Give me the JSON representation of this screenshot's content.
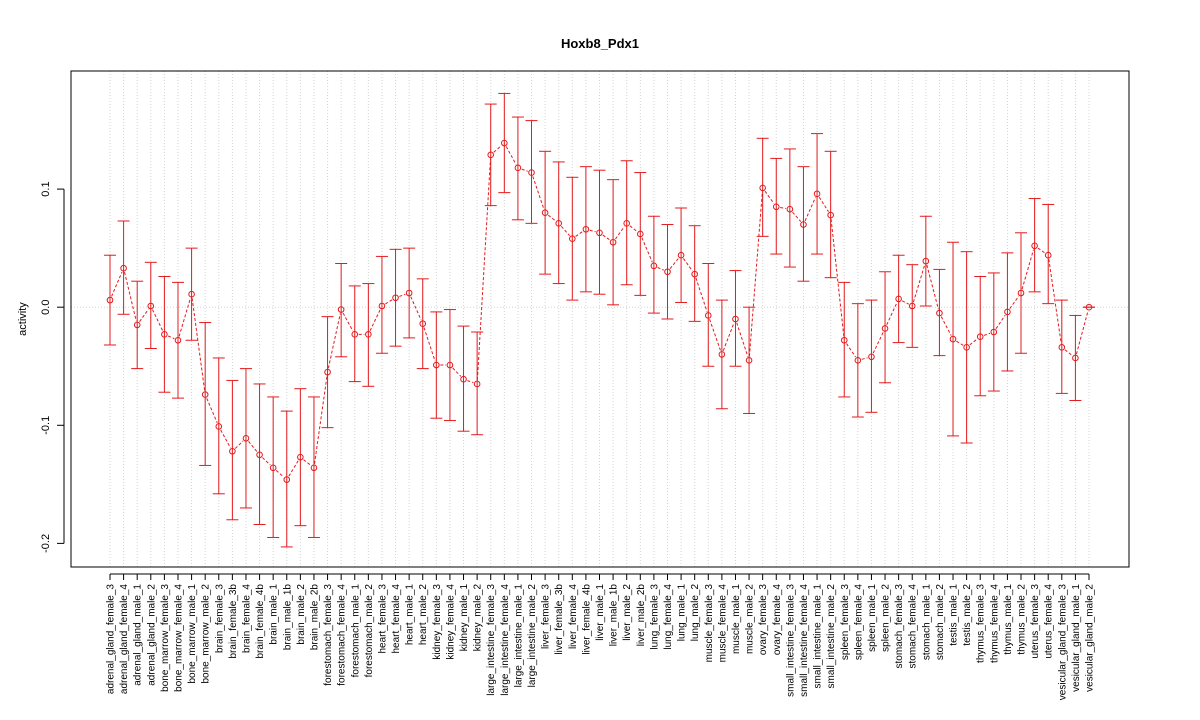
{
  "chart_data": {
    "type": "line",
    "title": "Hoxb8_Pdx1",
    "xlabel": "",
    "ylabel": "activity",
    "ylim": [
      -0.22,
      0.2
    ],
    "y_ticks": [
      -0.2,
      -0.1,
      0.0,
      0.1
    ],
    "y_tick_labels": [
      "-0.2",
      "-0.1",
      "0.0",
      "0.1"
    ],
    "grid": true,
    "color": "#e41a1c",
    "categories": [
      "adrenal_gland_female_3",
      "adrenal_gland_female_4",
      "adrenal_gland_male_1",
      "adrenal_gland_male_2",
      "bone_marrow_female_3",
      "bone_marrow_female_4",
      "bone_marrow_male_1",
      "bone_marrow_male_2",
      "brain_female_3",
      "brain_female_3b",
      "brain_female_4",
      "brain_female_4b",
      "brain_male_1",
      "brain_male_1b",
      "brain_male_2",
      "brain_male_2b",
      "forestomach_female_3",
      "forestomach_female_4",
      "forestomach_male_1",
      "forestomach_male_2",
      "heart_female_3",
      "heart_female_4",
      "heart_male_1",
      "heart_male_2",
      "kidney_female_3",
      "kidney_female_4",
      "kidney_male_1",
      "kidney_male_2",
      "large_intestine_female_3",
      "large_intestine_female_4",
      "large_intestine_male_1",
      "large_intestine_male_2",
      "liver_female_3",
      "liver_female_3b",
      "liver_female_4",
      "liver_female_4b",
      "liver_male_1",
      "liver_male_1b",
      "liver_male_2",
      "liver_male_2b",
      "lung_female_3",
      "lung_female_4",
      "lung_male_1",
      "lung_male_2",
      "muscle_female_3",
      "muscle_female_4",
      "muscle_male_1",
      "muscle_male_2",
      "ovary_female_3",
      "ovary_female_4",
      "small_intestine_female_3",
      "small_intestine_female_4",
      "small_intestine_male_1",
      "small_intestine_male_2",
      "spleen_female_3",
      "spleen_female_4",
      "spleen_male_1",
      "spleen_male_2",
      "stomach_female_3",
      "stomach_female_4",
      "stomach_male_1",
      "stomach_male_2",
      "testis_male_1",
      "testis_male_2",
      "thymus_female_3",
      "thymus_female_4",
      "thymus_male_1",
      "thymus_male_2",
      "uterus_female_3",
      "uterus_female_4",
      "vesicular_gland_female_3",
      "vesicular_gland_male_1",
      "vesicular_gland_male_2"
    ],
    "values": [
      0.006,
      0.033,
      -0.015,
      0.001,
      -0.023,
      -0.028,
      0.011,
      -0.074,
      -0.101,
      -0.122,
      -0.111,
      -0.125,
      -0.136,
      -0.146,
      -0.127,
      -0.136,
      -0.055,
      -0.002,
      -0.023,
      -0.023,
      0.001,
      0.008,
      0.012,
      -0.014,
      -0.049,
      -0.049,
      -0.061,
      -0.065,
      0.129,
      0.139,
      0.118,
      0.114,
      0.08,
      0.071,
      0.058,
      0.066,
      0.063,
      0.055,
      0.071,
      0.062,
      0.035,
      0.03,
      0.044,
      0.028,
      -0.007,
      -0.04,
      -0.01,
      -0.045,
      0.101,
      0.085,
      0.083,
      0.07,
      0.096,
      0.078,
      -0.028,
      -0.045,
      -0.042,
      -0.018,
      0.007,
      0.001,
      0.039,
      -0.005,
      -0.027,
      -0.034,
      -0.025,
      -0.021,
      -0.004,
      0.012,
      0.052,
      0.044,
      -0.034,
      -0.043,
      0.0
    ],
    "lower": [
      -0.032,
      -0.006,
      -0.052,
      -0.035,
      -0.072,
      -0.077,
      -0.028,
      -0.134,
      -0.158,
      -0.18,
      -0.17,
      -0.184,
      -0.195,
      -0.203,
      -0.185,
      -0.195,
      -0.102,
      -0.042,
      -0.063,
      -0.067,
      -0.039,
      -0.033,
      -0.026,
      -0.052,
      -0.094,
      -0.096,
      -0.105,
      -0.108,
      0.086,
      0.097,
      0.074,
      0.071,
      0.028,
      0.02,
      0.006,
      0.013,
      0.011,
      0.002,
      0.019,
      0.01,
      -0.005,
      -0.01,
      0.004,
      -0.012,
      -0.05,
      -0.086,
      -0.05,
      -0.09,
      0.06,
      0.045,
      0.034,
      0.022,
      0.045,
      0.025,
      -0.076,
      -0.093,
      -0.089,
      -0.064,
      -0.03,
      -0.034,
      0.001,
      -0.041,
      -0.109,
      -0.115,
      -0.075,
      -0.071,
      -0.054,
      -0.039,
      0.013,
      0.003,
      -0.073,
      -0.079,
      0.0
    ],
    "upper": [
      0.044,
      0.073,
      0.022,
      0.038,
      0.026,
      0.021,
      0.05,
      -0.013,
      -0.043,
      -0.062,
      -0.052,
      -0.065,
      -0.076,
      -0.088,
      -0.069,
      -0.076,
      -0.008,
      0.037,
      0.018,
      0.02,
      0.043,
      0.049,
      0.05,
      0.024,
      -0.004,
      -0.002,
      -0.016,
      -0.021,
      0.172,
      0.181,
      0.161,
      0.158,
      0.132,
      0.123,
      0.11,
      0.119,
      0.116,
      0.108,
      0.124,
      0.114,
      0.077,
      0.07,
      0.084,
      0.069,
      0.037,
      0.006,
      0.031,
      0.0,
      0.143,
      0.126,
      0.134,
      0.119,
      0.147,
      0.132,
      0.021,
      0.003,
      0.006,
      0.03,
      0.044,
      0.036,
      0.077,
      0.032,
      0.055,
      0.047,
      0.026,
      0.029,
      0.046,
      0.063,
      0.092,
      0.087,
      0.006,
      -0.007,
      0.0
    ]
  }
}
